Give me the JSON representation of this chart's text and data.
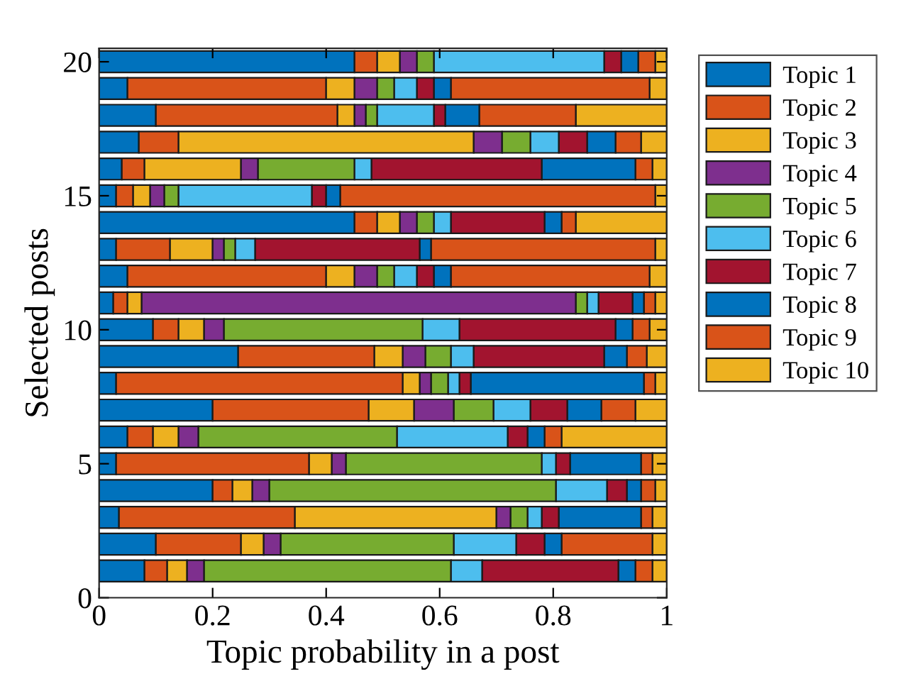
{
  "chart_data": {
    "type": "bar",
    "orientation": "horizontal",
    "stacked": true,
    "xlabel": "Topic probability in a post",
    "ylabel": "Selected posts",
    "x": [
      1,
      2,
      3,
      4,
      5,
      6,
      7,
      8,
      9,
      10,
      11,
      12,
      13,
      14,
      15,
      16,
      17,
      18,
      19,
      20
    ],
    "xlim": [
      0,
      1
    ],
    "xticks": [
      0,
      0.2,
      0.4,
      0.6,
      0.8,
      1
    ],
    "ylim": [
      0,
      20.5
    ],
    "yticks": [
      0,
      5,
      10,
      15,
      20
    ],
    "grid": false,
    "legend": "right",
    "series": [
      {
        "name": "Topic 1",
        "color": "#0072bd",
        "values": [
          0.08,
          0.1,
          0.035,
          0.2,
          0.03,
          0.05,
          0.2,
          0.03,
          0.245,
          0.095,
          0.025,
          0.05,
          0.03,
          0.45,
          0.03,
          0.04,
          0.07,
          0.1,
          0.05,
          0.45
        ]
      },
      {
        "name": "Topic 2",
        "color": "#d95319",
        "values": [
          0.04,
          0.15,
          0.31,
          0.035,
          0.34,
          0.045,
          0.275,
          0.505,
          0.24,
          0.045,
          0.025,
          0.35,
          0.095,
          0.04,
          0.03,
          0.04,
          0.07,
          0.32,
          0.35,
          0.04
        ]
      },
      {
        "name": "Topic 3",
        "color": "#edb120",
        "values": [
          0.035,
          0.04,
          0.355,
          0.035,
          0.04,
          0.045,
          0.08,
          0.03,
          0.05,
          0.045,
          0.025,
          0.05,
          0.075,
          0.04,
          0.03,
          0.17,
          0.52,
          0.03,
          0.05,
          0.04
        ]
      },
      {
        "name": "Topic 4",
        "color": "#7e2f8e",
        "values": [
          0.03,
          0.03,
          0.025,
          0.03,
          0.025,
          0.035,
          0.07,
          0.02,
          0.04,
          0.035,
          0.765,
          0.04,
          0.02,
          0.03,
          0.025,
          0.03,
          0.05,
          0.02,
          0.04,
          0.03
        ]
      },
      {
        "name": "Topic 5",
        "color": "#77ac30",
        "values": [
          0.435,
          0.305,
          0.03,
          0.505,
          0.345,
          0.35,
          0.07,
          0.03,
          0.045,
          0.35,
          0.02,
          0.03,
          0.02,
          0.03,
          0.025,
          0.17,
          0.05,
          0.02,
          0.03,
          0.03
        ]
      },
      {
        "name": "Topic 6",
        "color": "#4dbeee",
        "values": [
          0.055,
          0.11,
          0.025,
          0.09,
          0.025,
          0.195,
          0.065,
          0.02,
          0.04,
          0.065,
          0.02,
          0.04,
          0.035,
          0.03,
          0.235,
          0.03,
          0.05,
          0.1,
          0.04,
          0.3
        ]
      },
      {
        "name": "Topic 7",
        "color": "#a2142f",
        "values": [
          0.24,
          0.05,
          0.03,
          0.035,
          0.025,
          0.035,
          0.065,
          0.02,
          0.23,
          0.275,
          0.06,
          0.03,
          0.29,
          0.165,
          0.025,
          0.3,
          0.05,
          0.02,
          0.03,
          0.03
        ]
      },
      {
        "name": "Topic 8",
        "color": "#0072bd",
        "values": [
          0.03,
          0.03,
          0.145,
          0.025,
          0.125,
          0.03,
          0.06,
          0.305,
          0.04,
          0.03,
          0.02,
          0.03,
          0.02,
          0.03,
          0.025,
          0.165,
          0.05,
          0.06,
          0.03,
          0.03
        ]
      },
      {
        "name": "Topic 9",
        "color": "#d95319",
        "values": [
          0.03,
          0.16,
          0.02,
          0.025,
          0.02,
          0.03,
          0.06,
          0.02,
          0.035,
          0.03,
          0.02,
          0.35,
          0.395,
          0.025,
          0.555,
          0.03,
          0.045,
          0.17,
          0.35,
          0.03
        ]
      },
      {
        "name": "Topic 10",
        "color": "#edb120",
        "values": [
          0.025,
          0.025,
          0.025,
          0.02,
          0.025,
          0.185,
          0.055,
          0.02,
          0.035,
          0.03,
          0.02,
          0.03,
          0.02,
          0.16,
          0.02,
          0.025,
          0.045,
          0.16,
          0.03,
          0.02
        ]
      }
    ]
  }
}
